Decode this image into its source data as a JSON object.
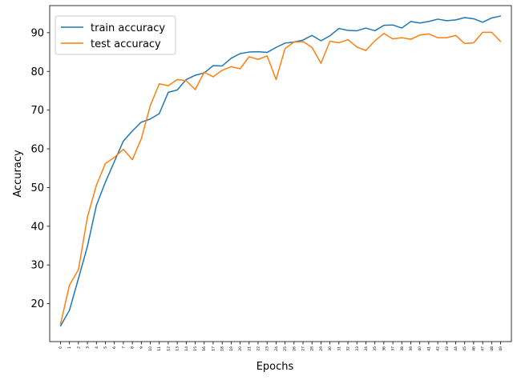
{
  "chart_data": {
    "type": "line",
    "xlabel": "Epochs",
    "ylabel": "Accuracy",
    "x": [
      0,
      1,
      2,
      3,
      4,
      5,
      6,
      7,
      8,
      9,
      10,
      11,
      12,
      13,
      14,
      15,
      16,
      17,
      18,
      19,
      20,
      21,
      22,
      23,
      24,
      25,
      26,
      27,
      28,
      29,
      30,
      31,
      32,
      33,
      34,
      35,
      36,
      37,
      38,
      39,
      40,
      41,
      42,
      43,
      44,
      45,
      46,
      47,
      48,
      49
    ],
    "x_tick_labels": [
      "0",
      "1",
      "2",
      "3",
      "4",
      "5",
      "6",
      "7",
      "8",
      "9",
      "10",
      "11",
      "12",
      "13",
      "14",
      "15",
      "16",
      "17",
      "18",
      "19",
      "20",
      "21",
      "22",
      "23",
      "24",
      "25",
      "26",
      "27",
      "28",
      "29",
      "30",
      "31",
      "32",
      "33",
      "34",
      "35",
      "36",
      "37",
      "38",
      "39",
      "40",
      "41",
      "42",
      "43",
      "44",
      "45",
      "46",
      "47",
      "48",
      "49"
    ],
    "y_ticks": [
      20,
      30,
      40,
      50,
      60,
      70,
      80,
      90
    ],
    "y_tick_labels": [
      "20",
      "30",
      "40",
      "50",
      "60",
      "70",
      "80",
      "90"
    ],
    "xlim": [
      -1.2,
      50.2
    ],
    "ylim": [
      10.2,
      97.0
    ],
    "grid": false,
    "legend_position": "top-left",
    "series": [
      {
        "name": "train accuracy",
        "color": "#1f77b4",
        "values": [
          14.2,
          18.3,
          26.5,
          34.8,
          45.4,
          51.4,
          56.7,
          62.0,
          64.6,
          66.9,
          67.7,
          69.1,
          74.6,
          75.2,
          77.9,
          79.0,
          79.6,
          81.5,
          81.4,
          83.4,
          84.6,
          85.0,
          85.1,
          84.9,
          86.2,
          87.3,
          87.6,
          88.1,
          89.3,
          87.9,
          89.2,
          91.1,
          90.6,
          90.5,
          91.2,
          90.5,
          91.9,
          92.0,
          91.2,
          92.9,
          92.5,
          92.9,
          93.5,
          93.1,
          93.3,
          93.9,
          93.6,
          92.7,
          93.8,
          94.3
        ]
      },
      {
        "name": "test accuracy",
        "color": "#ff7f0e",
        "values": [
          14.7,
          24.8,
          28.8,
          42.4,
          50.6,
          56.2,
          57.8,
          59.9,
          57.2,
          62.6,
          71.2,
          76.8,
          76.3,
          77.9,
          77.6,
          75.3,
          79.8,
          78.6,
          80.3,
          81.2,
          80.7,
          83.8,
          83.1,
          84.0,
          77.9,
          85.9,
          87.6,
          87.7,
          86.2,
          82.1,
          87.8,
          87.4,
          88.2,
          86.3,
          85.4,
          87.9,
          89.8,
          88.4,
          88.7,
          88.3,
          89.4,
          89.7,
          88.7,
          88.7,
          89.3,
          87.2,
          87.4,
          90.1,
          90.1,
          87.7
        ]
      }
    ]
  }
}
